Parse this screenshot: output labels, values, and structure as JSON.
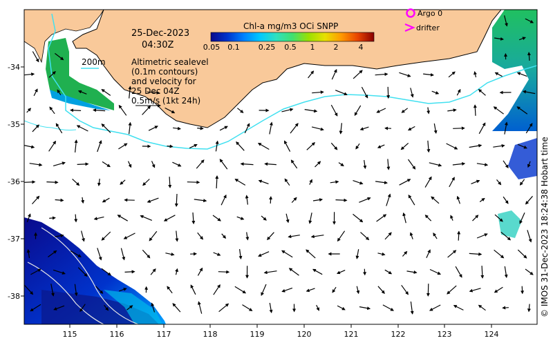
{
  "map": {
    "date": "25-Dec-2023",
    "time": "04:30Z",
    "contour_label": "200m",
    "altimetry_note": [
      "Altimetric sealevel",
      "(0.1m contours)",
      "and velocity for",
      "25 Dec 04Z",
      "0.5m/s (1kt 24h)"
    ],
    "colorbar": {
      "title": "Chl-a mg/m3 OCi SNPP",
      "tick_labels": [
        "0.05",
        "0.1",
        "0.25",
        "0.5",
        "1",
        "2",
        "4"
      ],
      "colors": [
        "#0a0a8c",
        "#0033cc",
        "#0080ff",
        "#00c8ff",
        "#2fe0c0",
        "#40e070",
        "#9be000",
        "#e8e000",
        "#ff9900",
        "#e84400",
        "#8a0000"
      ]
    },
    "legend": {
      "argo_label": "Argo 0",
      "drifter_label": "drifter",
      "marker_color": "#ff00ff"
    },
    "credit": "© IMOS 31-Dec-2023 18:24:38 Hobart time",
    "axes": {
      "x_ticks": [
        "115",
        "116",
        "117",
        "118",
        "119",
        "120",
        "121",
        "122",
        "123",
        "124"
      ],
      "y_ticks": [
        "-34",
        "-35",
        "-36",
        "-37",
        "-38"
      ]
    },
    "colors": {
      "land": "#f9c99a",
      "ocean": "#ffffff",
      "contour_200m": "#40e0f0",
      "sealevel_contour": "#e8e8e8"
    }
  }
}
